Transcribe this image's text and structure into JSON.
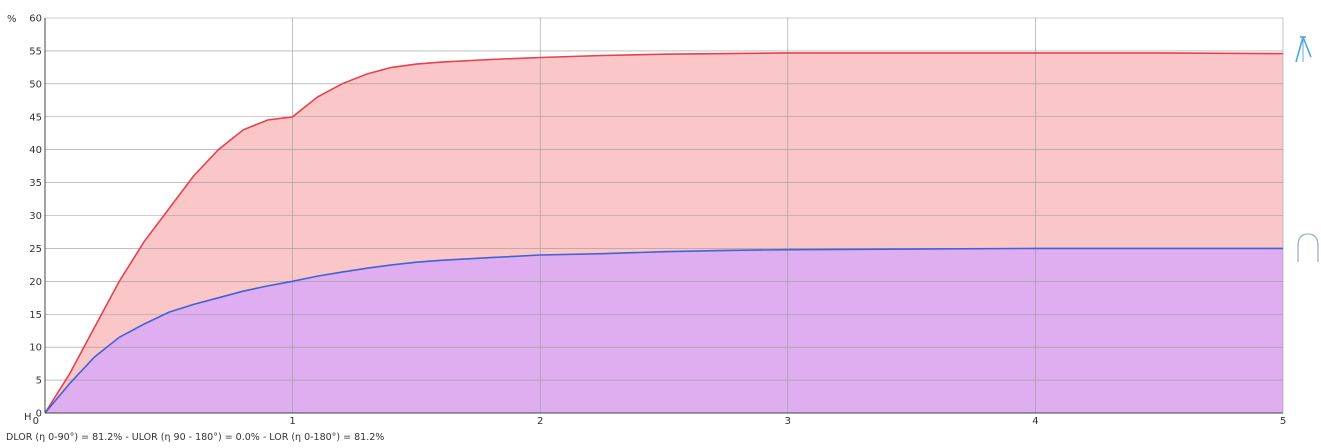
{
  "chart_data": {
    "type": "area",
    "y_unit": "%",
    "x_origin_label": "H",
    "x": [
      0,
      0.1,
      0.2,
      0.3,
      0.4,
      0.5,
      0.6,
      0.7,
      0.8,
      0.9,
      1.0,
      1.1,
      1.2,
      1.3,
      1.4,
      1.5,
      1.6,
      1.8,
      2.0,
      2.25,
      2.5,
      2.75,
      3.0,
      3.5,
      4.0,
      4.5,
      5.0
    ],
    "series": [
      {
        "color": "#e8404c",
        "fill": "#fbc6c8",
        "values": [
          0,
          6,
          13,
          20,
          26,
          31,
          36,
          40,
          43,
          44.5,
          45,
          48,
          50,
          51.5,
          52.5,
          53,
          53.3,
          53.7,
          54,
          54.3,
          54.5,
          54.6,
          54.7,
          54.7,
          54.7,
          54.7,
          54.6
        ]
      },
      {
        "color": "#3f63d6",
        "fill": "#dfaef0",
        "values": [
          0,
          4.5,
          8.5,
          11.5,
          13.5,
          15.3,
          16.5,
          17.5,
          18.5,
          19.3,
          20,
          20.8,
          21.4,
          22,
          22.5,
          22.9,
          23.2,
          23.6,
          24,
          24.2,
          24.5,
          24.7,
          24.8,
          24.9,
          25,
          25,
          25
        ]
      }
    ],
    "xticks": [
      "0",
      "1",
      "2",
      "3",
      "4",
      "5"
    ],
    "yticks": [
      "0",
      "5",
      "10",
      "15",
      "20",
      "25",
      "30",
      "35",
      "40",
      "45",
      "50",
      "55",
      "60"
    ],
    "xlim": [
      0,
      5
    ],
    "ylim": [
      0,
      60
    ],
    "grid": true
  },
  "footer": "DLOR (η 0-90°) = 81.2%  -  ULOR (η 90 - 180°) = 0.0%  -  LOR (η 0-180°) = 81.2%",
  "icons": [
    "downlight-icon",
    "ceiling-dome-icon"
  ]
}
